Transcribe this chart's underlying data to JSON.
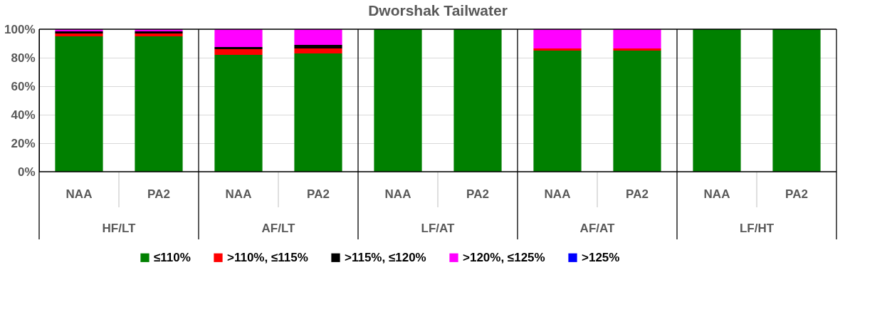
{
  "chart_data": {
    "type": "bar",
    "title": "Dworshak Tailwater",
    "stacked": true,
    "categories": [
      "NAA",
      "PA2",
      "NAA",
      "PA2",
      "NAA",
      "PA2",
      "NAA",
      "PA2",
      "NAA",
      "PA2"
    ],
    "annotations": [
      "HF/LT",
      "AF/LT",
      "LF/AT",
      "AF/AT",
      "LF/HT"
    ],
    "series": [
      {
        "name": "≤110%",
        "color": "#008000",
        "values": [
          95,
          95,
          82,
          83,
          100,
          100,
          85,
          85,
          100,
          100
        ]
      },
      {
        "name": ">110%, ≤115%",
        "color": "#ff0000",
        "values": [
          2,
          2,
          4,
          3.5,
          0,
          0,
          1.5,
          1.5,
          0,
          0
        ]
      },
      {
        "name": ">115%, ≤120%",
        "color": "#000000",
        "values": [
          1.5,
          1.5,
          1.5,
          2.5,
          0,
          0,
          0,
          0,
          0,
          0
        ]
      },
      {
        "name": ">120%, ≤125%",
        "color": "#ff00ff",
        "values": [
          1.5,
          1.5,
          12.5,
          11,
          0,
          0,
          13.5,
          13.5,
          0,
          0
        ]
      },
      {
        "name": ">125%",
        "color": "#0000ff",
        "values": [
          0,
          0,
          0,
          0,
          0,
          0,
          0,
          0,
          0,
          0
        ]
      }
    ],
    "ylim": [
      0,
      100
    ],
    "yticks": [
      {
        "value": 0,
        "label": "0%"
      },
      {
        "value": 20,
        "label": "20%"
      },
      {
        "value": 40,
        "label": "40%"
      },
      {
        "value": 60,
        "label": "60%"
      },
      {
        "value": 80,
        "label": "80%"
      },
      {
        "value": 100,
        "label": "100%"
      }
    ],
    "grid": "y",
    "legend": "bottom"
  }
}
